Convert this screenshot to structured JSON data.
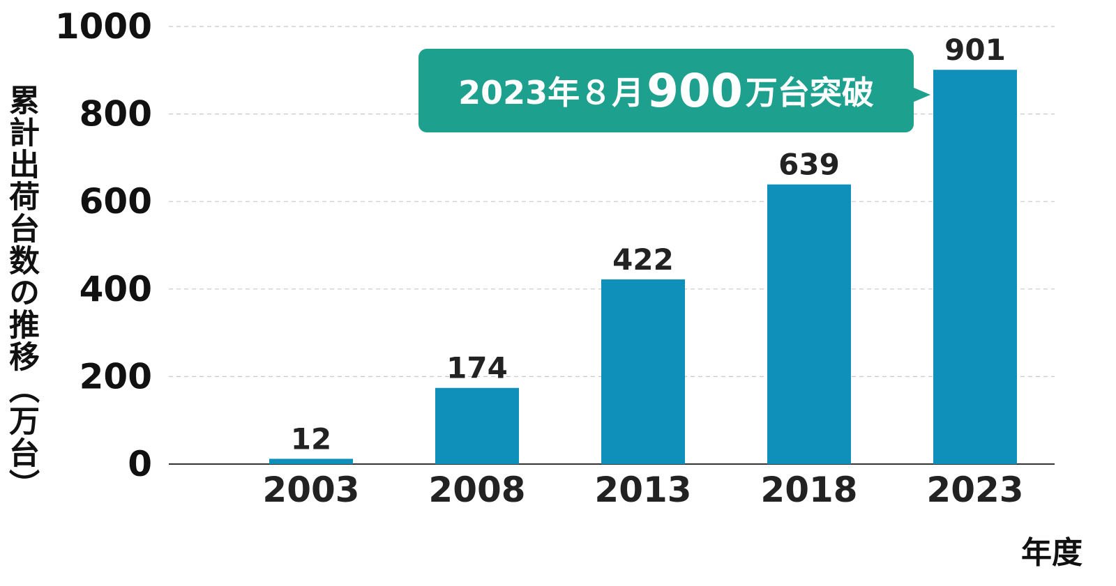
{
  "chart_data": {
    "type": "bar",
    "title": "",
    "ylabel": "累計出荷台数の推移（万台）",
    "xlabel": "年度",
    "categories": [
      "2003",
      "2008",
      "2013",
      "2018",
      "2023"
    ],
    "values": [
      12,
      174,
      422,
      639,
      901
    ],
    "data_labels": [
      "12",
      "174",
      "422",
      "639",
      "901"
    ],
    "y_ticks": [
      "0",
      "200",
      "400",
      "600",
      "800",
      "1000"
    ],
    "ylim": [
      0,
      1000
    ],
    "grid": true,
    "bar_color": "#0e90bb",
    "annotation": {
      "prefix": "2023年８月",
      "highlight": "900",
      "suffix": "万台突破",
      "color": "#1ea08f"
    }
  }
}
